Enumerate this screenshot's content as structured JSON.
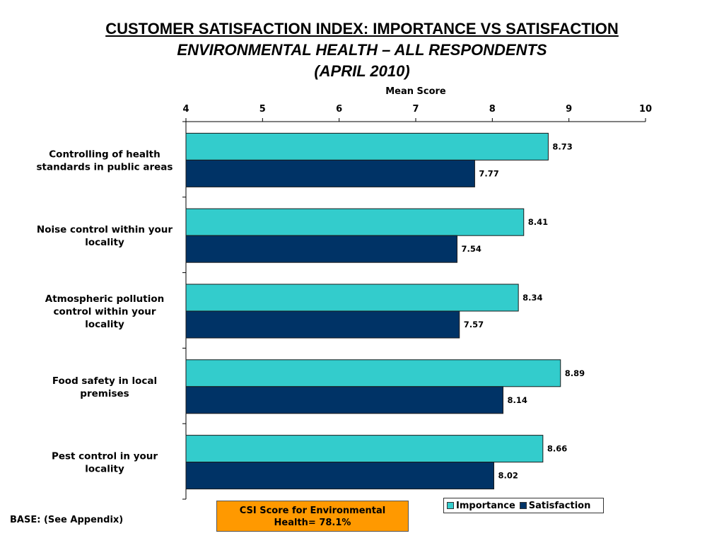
{
  "title": {
    "line1": "CUSTOMER SATISFACTION INDEX: IMPORTANCE VS SATISFACTION",
    "line2": "ENVIRONMENTAL HEALTH – ALL RESPONDENTS",
    "line3": "(APRIL 2010)"
  },
  "colors": {
    "importance": "#33cccc",
    "satisfaction": "#003366",
    "csi_box": "#ff9900"
  },
  "chart_data": {
    "type": "bar",
    "orientation": "horizontal",
    "title": "CUSTOMER SATISFACTION INDEX: IMPORTANCE VS SATISFACTION",
    "xlabel": "Mean Score",
    "ylabel": "",
    "xlim": [
      4,
      10
    ],
    "xticks": [
      "4",
      "5",
      "6",
      "7",
      "8",
      "9",
      "10"
    ],
    "xaxis_position": "top",
    "grid": false,
    "legend_position": "bottom-right",
    "categories": [
      [
        "Controlling of health",
        "standards in public areas"
      ],
      [
        "Noise control within your",
        "locality"
      ],
      [
        "Atmospheric pollution",
        "control within your",
        "locality"
      ],
      [
        "Food safety in local",
        "premises"
      ],
      [
        "Pest control in your",
        "locality"
      ]
    ],
    "series": [
      {
        "name": "Importance",
        "values": [
          8.73,
          8.41,
          8.34,
          8.89,
          8.66
        ],
        "labels": [
          "8.73",
          "8.41",
          "8.34",
          "8.89",
          "8.66"
        ]
      },
      {
        "name": "Satisfaction",
        "values": [
          7.77,
          7.54,
          7.57,
          8.14,
          8.02
        ],
        "labels": [
          "7.77",
          "7.54",
          "7.57",
          "8.14",
          "8.02"
        ]
      }
    ]
  },
  "footer": {
    "base_note": "BASE: (See Appendix)",
    "csi_line1": "CSI Score for Environmental",
    "csi_line2": "Health= 78.1%"
  },
  "legend": {
    "importance": "Importance",
    "satisfaction": "Satisfaction"
  }
}
